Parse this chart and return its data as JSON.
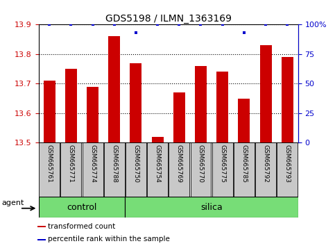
{
  "title": "GDS5198 / ILMN_1363169",
  "samples": [
    "GSM665761",
    "GSM665771",
    "GSM665774",
    "GSM665788",
    "GSM665750",
    "GSM665754",
    "GSM665769",
    "GSM665770",
    "GSM665775",
    "GSM665785",
    "GSM665792",
    "GSM665793"
  ],
  "bar_values": [
    13.71,
    13.75,
    13.69,
    13.86,
    13.77,
    13.52,
    13.67,
    13.76,
    13.74,
    13.65,
    13.83,
    13.79
  ],
  "percentile_values": [
    100,
    100,
    100,
    100,
    93,
    100,
    100,
    100,
    100,
    93,
    100,
    100
  ],
  "bar_color": "#CC0000",
  "percentile_color": "#0000CC",
  "ylim_left": [
    13.5,
    13.9
  ],
  "ylim_right": [
    0,
    100
  ],
  "yticks_left": [
    13.5,
    13.6,
    13.7,
    13.8,
    13.9
  ],
  "yticks_right": [
    0,
    25,
    50,
    75,
    100
  ],
  "ytick_labels_right": [
    "0",
    "25",
    "50",
    "75",
    "100%"
  ],
  "group_divider": 4,
  "groups": [
    {
      "label": "control",
      "start": 0,
      "end": 4,
      "color": "#77DD77"
    },
    {
      "label": "silica",
      "start": 4,
      "end": 12,
      "color": "#77DD77"
    }
  ],
  "agent_label": "agent",
  "legend_items": [
    {
      "label": "transformed count",
      "color": "#CC0000"
    },
    {
      "label": "percentile rank within the sample",
      "color": "#0000CC"
    }
  ],
  "tick_label_color_left": "#CC0000",
  "tick_label_color_right": "#0000CC",
  "bar_width": 0.55,
  "sample_box_color": "#C8C8C8",
  "fig_width": 4.83,
  "fig_height": 3.54,
  "dpi": 100
}
